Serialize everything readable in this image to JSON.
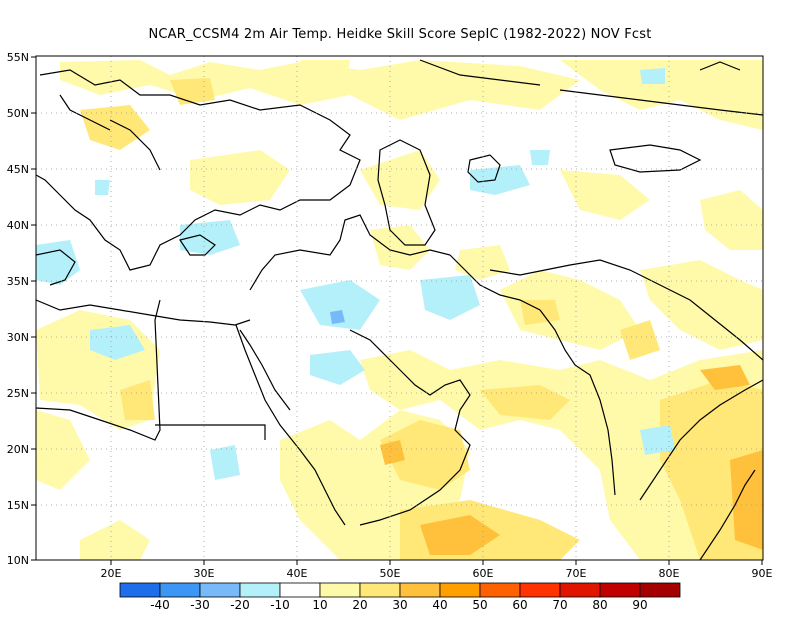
{
  "map": {
    "title": "NCAR_CCSM4  2m Air Temp. Heidke Skill Score SepIC (1982-2022) NOV Fcst",
    "lat_labels": [
      "55N",
      "50N",
      "45N",
      "40N",
      "35N",
      "30N",
      "25N",
      "20N",
      "15N",
      "10N"
    ],
    "lon_labels": [
      "20E",
      "30E",
      "40E",
      "50E",
      "60E",
      "70E",
      "80E",
      "90E"
    ],
    "extent": {
      "lon_min": 12,
      "lon_max": 90,
      "lat_min": 10,
      "lat_max": 55
    },
    "grid": "dotted",
    "colorbar": {
      "labels": [
        "-40",
        "-30",
        "-20",
        "-10",
        "10",
        "20",
        "30",
        "40",
        "50",
        "60",
        "70",
        "80",
        "90"
      ],
      "colors": [
        "#1e6eeb",
        "#3c96f5",
        "#78b9fa",
        "#b4f0fa",
        "#ffffff",
        "#fffaaa",
        "#ffe878",
        "#ffc03c",
        "#ffa000",
        "#ff6000",
        "#ff3200",
        "#e11400",
        "#c00000",
        "#a50000"
      ]
    }
  }
}
